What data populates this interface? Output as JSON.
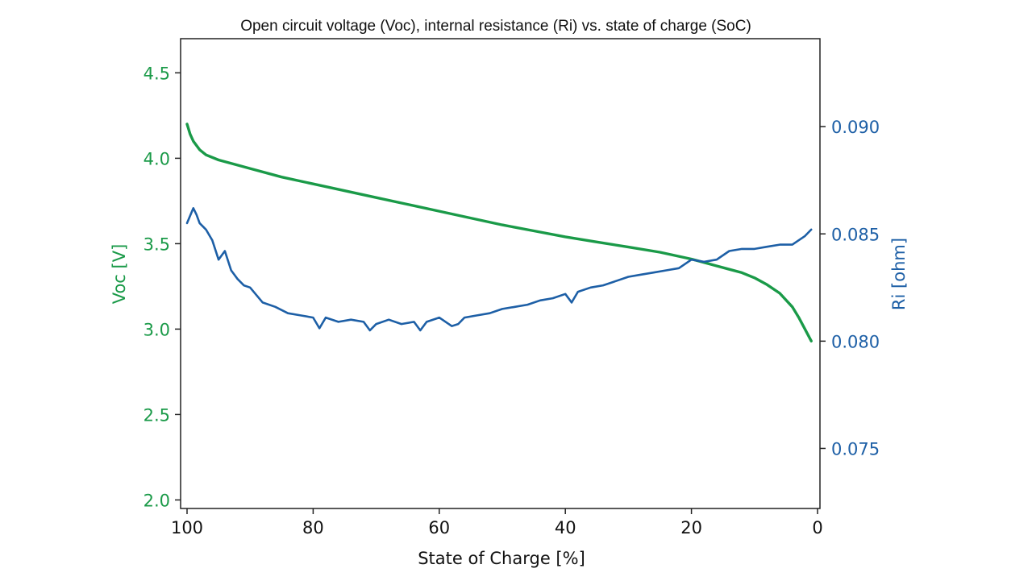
{
  "chart_data": {
    "type": "line",
    "title": "Open circuit voltage (Voc), internal resistance (Ri) vs. state of charge (SoC)",
    "xlabel": "State of Charge [%]",
    "ylabel": "Voc [V]",
    "y2label": "Ri [ohm]",
    "xlim": [
      100,
      0
    ],
    "ylim": [
      1.95,
      4.7
    ],
    "y2lim": [
      0.0722,
      0.0941
    ],
    "xticks": [
      "100",
      "80",
      "60",
      "40",
      "20",
      "0"
    ],
    "xtick_values": [
      100,
      80,
      60,
      40,
      20,
      0
    ],
    "yticks": [
      "2.0",
      "2.5",
      "3.0",
      "3.5",
      "4.0",
      "4.5"
    ],
    "ytick_values": [
      2.0,
      2.5,
      3.0,
      3.5,
      4.0,
      4.5
    ],
    "y2ticks": [
      "0.075",
      "0.080",
      "0.085",
      "0.090"
    ],
    "y2tick_values": [
      0.075,
      0.08,
      0.085,
      0.09
    ],
    "grid": false,
    "series": [
      {
        "name": "Voc",
        "axis": "left",
        "color": "#1a9a48",
        "x": [
          100,
          99.5,
          99,
          98,
          97,
          95,
          92,
          90,
          85,
          80,
          75,
          70,
          65,
          60,
          55,
          50,
          45,
          40,
          35,
          30,
          25,
          20,
          18,
          16,
          14,
          12,
          10,
          8,
          6,
          4,
          3,
          2,
          1
        ],
        "y": [
          4.2,
          4.14,
          4.1,
          4.05,
          4.02,
          3.99,
          3.96,
          3.94,
          3.89,
          3.85,
          3.81,
          3.77,
          3.73,
          3.69,
          3.65,
          3.61,
          3.575,
          3.54,
          3.51,
          3.48,
          3.45,
          3.41,
          3.39,
          3.37,
          3.35,
          3.33,
          3.3,
          3.26,
          3.21,
          3.13,
          3.07,
          3.0,
          2.93
        ]
      },
      {
        "name": "Ri",
        "axis": "right",
        "color": "#1d5fa6",
        "x": [
          100,
          99,
          98.5,
          98,
          97,
          96,
          95,
          94,
          93,
          92,
          91,
          90,
          88,
          86,
          84,
          82,
          80,
          79,
          78,
          76,
          74,
          72,
          71,
          70,
          68,
          66,
          64,
          63,
          62,
          60,
          58,
          57,
          56,
          54,
          52,
          50,
          48,
          46,
          44,
          42,
          40,
          39,
          38,
          36,
          34,
          32,
          30,
          28,
          26,
          24,
          22,
          20,
          18,
          16,
          14,
          12,
          10,
          8,
          6,
          4,
          2,
          1
        ],
        "y": [
          0.0855,
          0.0862,
          0.0859,
          0.0855,
          0.0852,
          0.0847,
          0.0838,
          0.0842,
          0.0833,
          0.0829,
          0.0826,
          0.0825,
          0.0818,
          0.0816,
          0.0813,
          0.0812,
          0.0811,
          0.0806,
          0.0811,
          0.0809,
          0.081,
          0.0809,
          0.0805,
          0.0808,
          0.081,
          0.0808,
          0.0809,
          0.0805,
          0.0809,
          0.0811,
          0.0807,
          0.0808,
          0.0811,
          0.0812,
          0.0813,
          0.0815,
          0.0816,
          0.0817,
          0.0819,
          0.082,
          0.0822,
          0.0818,
          0.0823,
          0.0825,
          0.0826,
          0.0828,
          0.083,
          0.0831,
          0.0832,
          0.0833,
          0.0834,
          0.0838,
          0.0837,
          0.0838,
          0.0842,
          0.0843,
          0.0843,
          0.0844,
          0.0845,
          0.0845,
          0.0849,
          0.0852
        ]
      }
    ]
  }
}
